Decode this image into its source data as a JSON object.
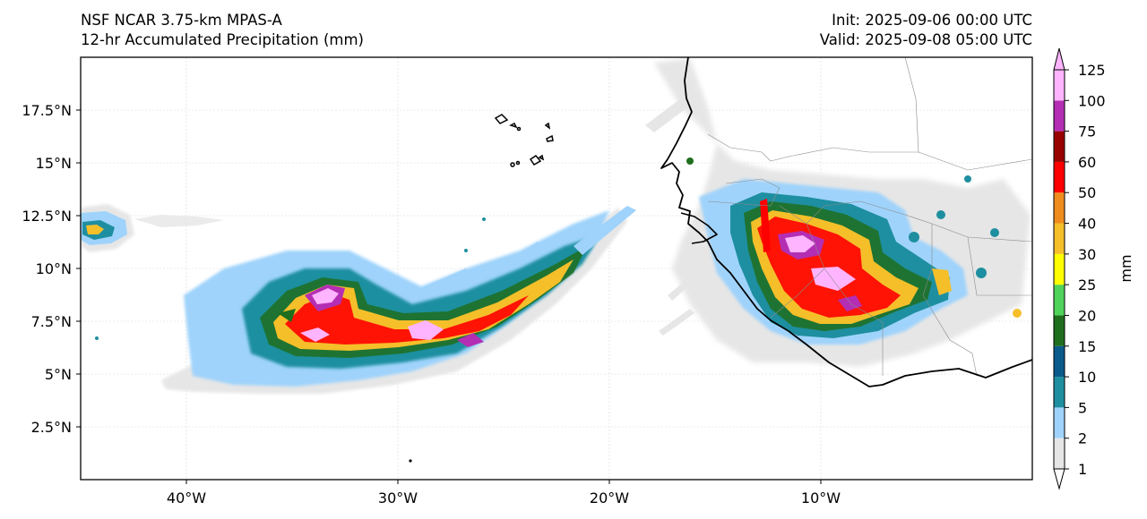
{
  "header": {
    "model": "NSF NCAR 3.75-km MPAS-A",
    "product": "12-hr Accumulated Precipitation (mm)",
    "init": "Init: 2025-09-06 00:00 UTC",
    "valid": "Valid: 2025-09-08 05:00 UTC"
  },
  "map": {
    "extent": {
      "lon": [
        -45,
        0
      ],
      "lat": [
        0,
        20
      ]
    },
    "lon_ticks": [
      {
        "value": -40,
        "label": "40°W"
      },
      {
        "value": -30,
        "label": "30°W"
      },
      {
        "value": -20,
        "label": "20°W"
      },
      {
        "value": -10,
        "label": "10°W"
      }
    ],
    "lat_ticks": [
      {
        "value": 2.5,
        "label": "2.5°N"
      },
      {
        "value": 5,
        "label": "5°N"
      },
      {
        "value": 7.5,
        "label": "7.5°N"
      },
      {
        "value": 10,
        "label": "10°N"
      },
      {
        "value": 12.5,
        "label": "12.5°N"
      },
      {
        "value": 15,
        "label": "15°N"
      },
      {
        "value": 17.5,
        "label": "17.5°N"
      }
    ],
    "gridlines": true
  },
  "colorbar": {
    "label": "mm",
    "levels": [
      "1",
      "2",
      "5",
      "10",
      "15",
      "20",
      "25",
      "30",
      "40",
      "50",
      "60",
      "75",
      "100",
      "125"
    ],
    "colors": [
      "#e6e6e6",
      "#9fd3fb",
      "#1e8fa0",
      "#0a5a8c",
      "#1e6e1e",
      "#4fd35a",
      "#ffff00",
      "#f5bf2a",
      "#f08c1e",
      "#ff0000",
      "#990000",
      "#b42eb4",
      "#ffb4ff"
    ]
  },
  "chart_data": {
    "type": "heatmap",
    "variable": "12-hr Accumulated Precipitation",
    "units": "mm",
    "regions": [
      {
        "lon": [
          -45,
          -41.5
        ],
        "lat": [
          10.5,
          13
        ],
        "max_mm": 30
      },
      {
        "lon": [
          -40,
          -19.5
        ],
        "lat": [
          4,
          12.5
        ],
        "max_mm": 125
      },
      {
        "lon": [
          -17.5,
          -1.5
        ],
        "lat": [
          4.5,
          13.5
        ],
        "max_mm": 125
      }
    ]
  }
}
